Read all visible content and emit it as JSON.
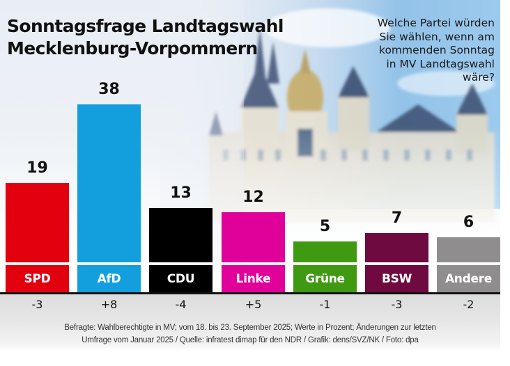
{
  "title_lines": [
    "Sonntagsfrage Landtagswahl",
    "Mecklenburg-Vorpommern"
  ],
  "question_lines": [
    "Welche Partei würden",
    "Sie wählen, wenn am",
    "kommenden Sonntag",
    "in MV Landtagswahl",
    "wäre?"
  ],
  "chart_data": {
    "type": "bar",
    "title": "Sonntagsfrage Landtagswahl Mecklenburg-Vorpommern",
    "xlabel": "",
    "ylabel": "Werte in Prozent",
    "categories": [
      "SPD",
      "AfD",
      "CDU",
      "Linke",
      "Grüne",
      "BSW",
      "Andere"
    ],
    "values": [
      19,
      38,
      13,
      12,
      5,
      7,
      6
    ],
    "value_labels": [
      "19",
      "38",
      "13",
      "12",
      "5",
      "7",
      "6"
    ],
    "changes": [
      "-3",
      "+8",
      "-4",
      "+5",
      "-1",
      "-3",
      "-2"
    ],
    "colors": [
      "#e2000f",
      "#139fde",
      "#000000",
      "#e0009a",
      "#3f9a12",
      "#6e0a3f",
      "#8f8d8e"
    ],
    "ylim": [
      0,
      40
    ],
    "grid": false,
    "legend": "none"
  },
  "footnote_lines": [
    "Befragte: Wahlberechtigte in MV; vom 18. bis 23. September 2025; Werte in Prozent; Änderungen zur letzten",
    "Umfrage vom Januar 2025 / Quelle: infratest dimap für den NDR / Grafik: dens/SVZ/NK / Foto: dpa"
  ]
}
